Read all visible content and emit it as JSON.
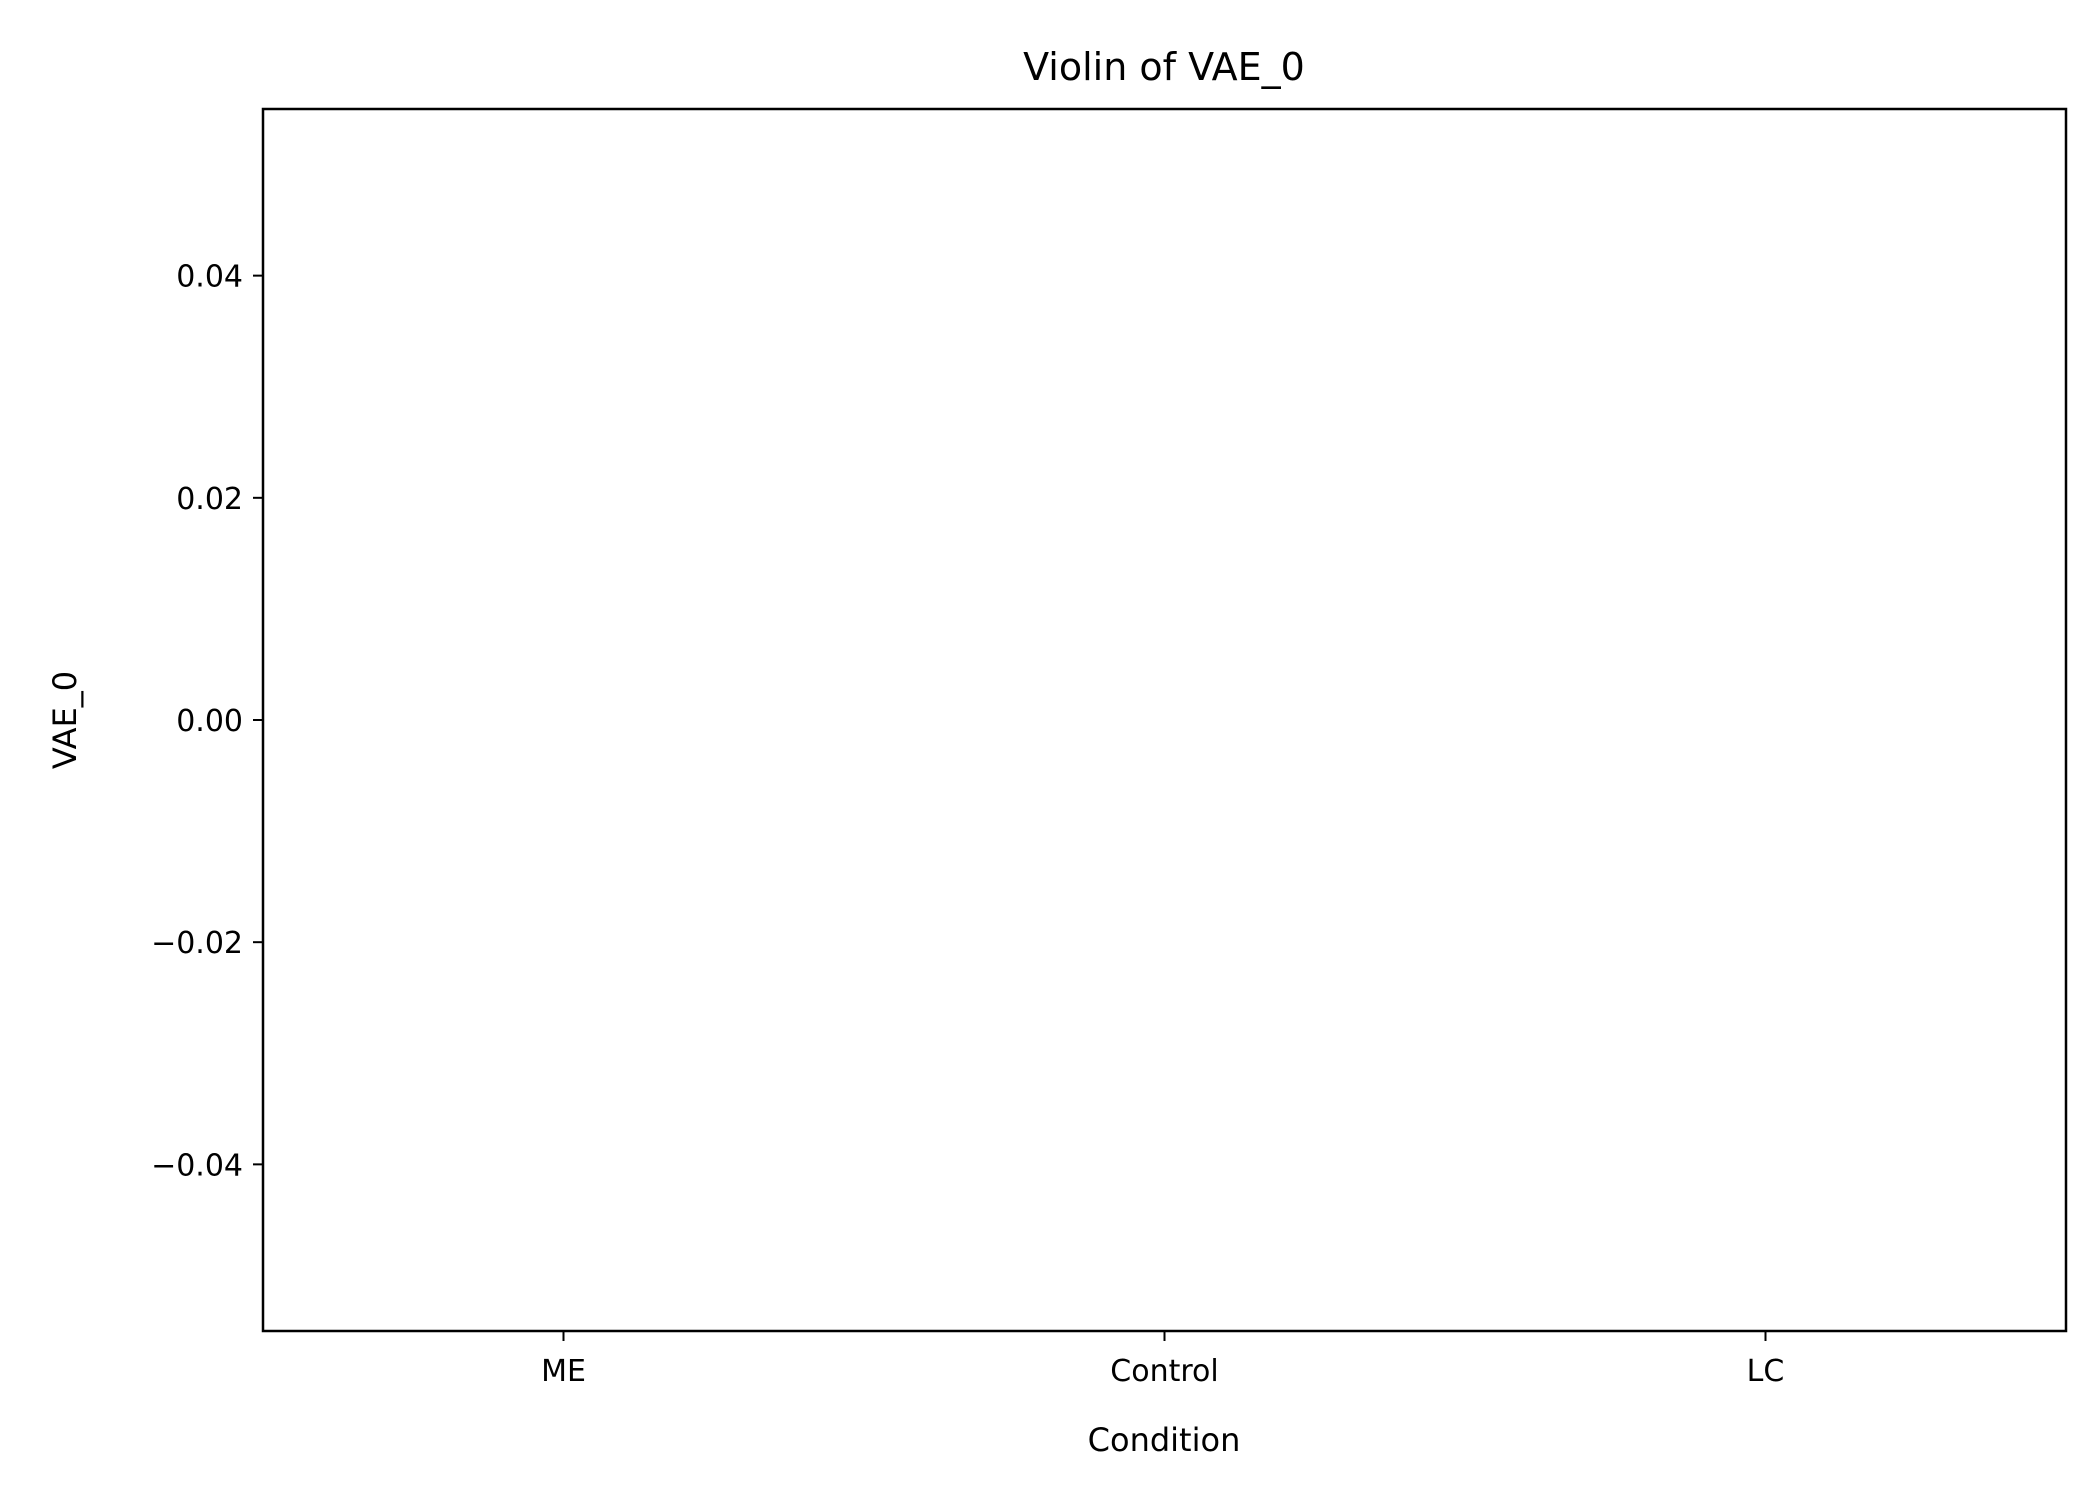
{
  "chart_data": {
    "type": "violin",
    "title": "Violin of VAE_0",
    "xlabel": "Condition",
    "ylabel": "VAE_0",
    "categories": [
      "ME",
      "Control",
      "LC"
    ],
    "series": [],
    "ylim": [
      -0.055,
      0.055
    ],
    "yticks": [
      -0.04,
      -0.02,
      0.0,
      0.02,
      0.04
    ],
    "ytick_labels": [
      "−0.04",
      "−0.02",
      "0.00",
      "0.02",
      "0.04"
    ],
    "grid": false,
    "legend": "none"
  }
}
